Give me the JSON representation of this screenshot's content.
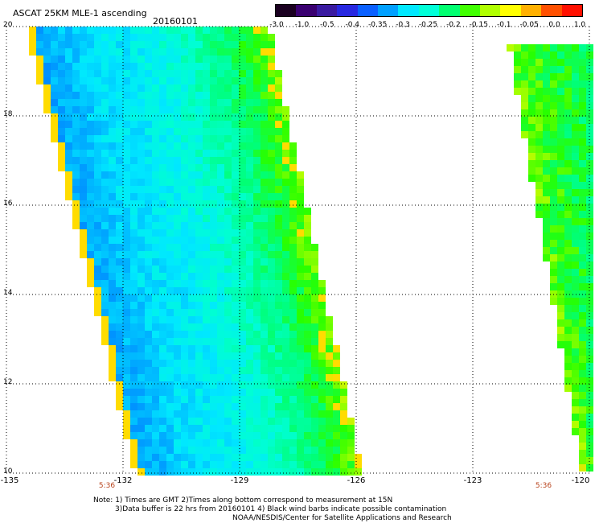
{
  "title": "ASCAT 25KM MLE-1 ascending",
  "date": "20160101",
  "colorbar": {
    "labels": [
      "-3.0",
      "-1.0",
      "-0.5",
      "-0.4",
      "-0.35",
      "-0.3",
      "-0.25",
      "-0.2",
      "-0.15",
      "-0.1",
      "-0.05",
      "0.0",
      "1.0"
    ],
    "colors": [
      "#1a0020",
      "#3a0070",
      "#3a1aa0",
      "#2828e0",
      "#0a60ff",
      "#00a0ff",
      "#00e8ff",
      "#00ffd8",
      "#00ff70",
      "#40ff00",
      "#b0ff00",
      "#ffff00",
      "#ffb000",
      "#ff5000",
      "#ff1000"
    ]
  },
  "map": {
    "lon_range": [
      -135,
      -120
    ],
    "lat_range": [
      10,
      20
    ],
    "lat_ticks": [
      "20",
      "18",
      "16",
      "14",
      "12",
      "10"
    ],
    "lon_ticks": [
      "-135",
      "-132",
      "-129",
      "-126",
      "-123",
      "-120"
    ],
    "pass_times": [
      "5:36",
      "5:36"
    ],
    "gridlines": "dotted"
  },
  "notes": {
    "line1": "Note: 1) Times are GMT 2)Times along bottom correspond to measurement at 15N",
    "line2": "3)Data buffer is 22 hrs from 20160101 4) Black wind barbs indicate possible contamination",
    "line3": "NOAA/NESDIS/Center for Satellite Applications and Research"
  }
}
